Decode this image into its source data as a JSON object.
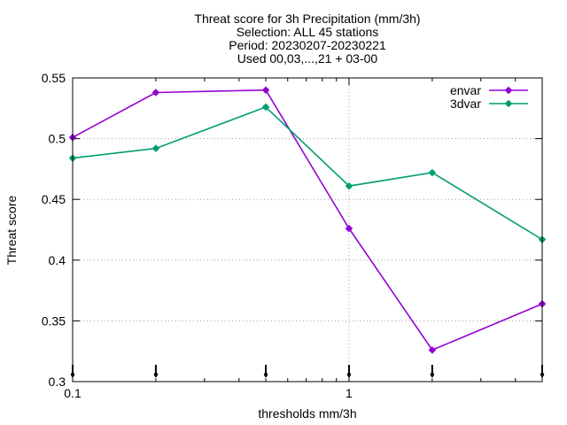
{
  "chart_data": {
    "type": "line",
    "title_lines": [
      "Threat score  for 3h Precipitation (mm/3h)",
      "Selection: ALL      45 stations",
      "Period: 20230207-20230221",
      "Used 00,03,...,21 + 03-00"
    ],
    "xlabel": "thresholds mm/3h",
    "ylabel": "Threat score",
    "x_scale": "log",
    "xlim": [
      0.1,
      5
    ],
    "ylim": [
      0.3,
      0.55
    ],
    "x_ticks": [
      0.1,
      1
    ],
    "x_tick_labels": [
      "0.1",
      "1"
    ],
    "y_ticks": [
      0.3,
      0.35,
      0.4,
      0.45,
      0.5,
      0.55
    ],
    "y_tick_labels": [
      "0.3",
      "0.35",
      "0.4",
      "0.45",
      "0.5",
      "0.55"
    ],
    "grid": true,
    "legend_position": "top-right",
    "sample_markers_x": [
      0.1,
      0.2,
      0.5,
      1,
      2,
      5
    ],
    "x": [
      0.1,
      0.2,
      0.5,
      1,
      2,
      5
    ],
    "series": [
      {
        "name": "envar",
        "color": "#9400d3",
        "values": [
          0.501,
          0.538,
          0.54,
          0.426,
          0.326,
          0.364
        ]
      },
      {
        "name": "3dvar",
        "color": "#009e73",
        "values": [
          0.484,
          0.492,
          0.526,
          0.461,
          0.472,
          0.417
        ]
      }
    ]
  }
}
